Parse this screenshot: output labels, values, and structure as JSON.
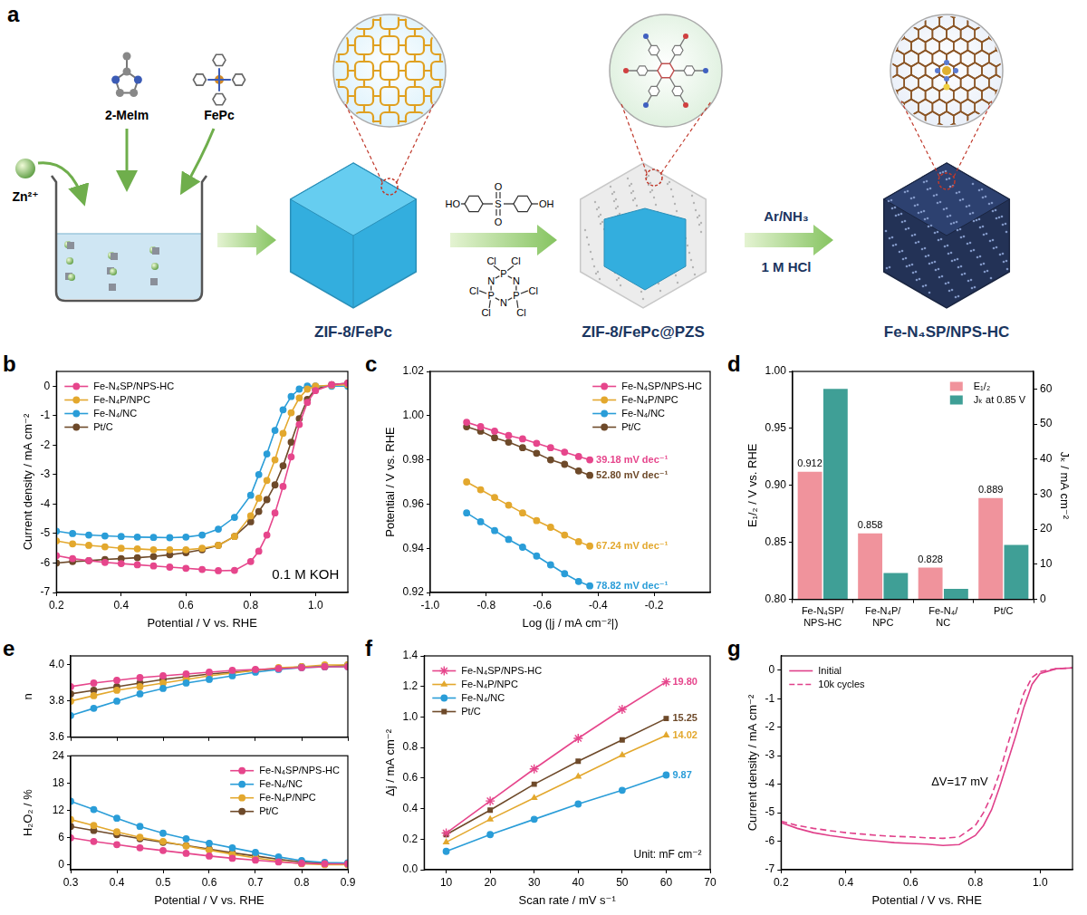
{
  "diagram": {
    "panel": "a",
    "precursors": [
      "Zn²⁺",
      "2-MeIm",
      "FePc"
    ],
    "stages": [
      "ZIF-8/FePc",
      "ZIF-8/FePc@PZS",
      "Fe-N₄SP/NPS-HC"
    ],
    "conditions": [
      "Ar/NH₃",
      "1 M HCl"
    ],
    "reagents": {
      "bisphenol_s": {
        "end_groups": [
          "HO",
          "OH"
        ],
        "center": "S",
        "oxo": "O"
      },
      "hccp": {
        "ring": [
          "P",
          "N",
          "P",
          "N",
          "P",
          "N"
        ],
        "substituent": "Cl"
      }
    }
  },
  "chart_data": [
    {
      "panel": "b",
      "type": "line",
      "xlabel": "Potential / V vs. RHE",
      "ylabel": "Current density / mA cm⁻²",
      "x": [
        0.2,
        0.25,
        0.3,
        0.35,
        0.4,
        0.45,
        0.5,
        0.55,
        0.6,
        0.65,
        0.7,
        0.75,
        0.8,
        0.825,
        0.85,
        0.875,
        0.9,
        0.925,
        0.95,
        0.975,
        1.0,
        1.05,
        1.1
      ],
      "series": [
        {
          "name": "Fe-N₄SP/NPS-HC",
          "color": "#e6468c",
          "marker": "circle",
          "line_style": "solid",
          "values": [
            -5.75,
            -5.85,
            -5.92,
            -5.98,
            -6.02,
            -6.06,
            -6.1,
            -6.14,
            -6.18,
            -6.22,
            -6.26,
            -6.25,
            -5.95,
            -5.6,
            -5.05,
            -4.3,
            -3.4,
            -2.4,
            -1.3,
            -0.55,
            -0.15,
            0.05,
            0.1
          ]
        },
        {
          "name": "Fe-N₄P/NPC",
          "color": "#e3a82e",
          "marker": "circle",
          "line_style": "solid",
          "values": [
            -5.25,
            -5.35,
            -5.4,
            -5.45,
            -5.5,
            -5.52,
            -5.55,
            -5.55,
            -5.55,
            -5.5,
            -5.4,
            -5.1,
            -4.4,
            -3.8,
            -3.2,
            -2.5,
            -1.6,
            -0.9,
            -0.4,
            -0.1,
            0,
            0.03,
            0.05
          ]
        },
        {
          "name": "Fe-N₄/NC",
          "color": "#2a9dd8",
          "marker": "circle",
          "line_style": "solid",
          "values": [
            -4.92,
            -5.0,
            -5.05,
            -5.08,
            -5.1,
            -5.12,
            -5.13,
            -5.14,
            -5.12,
            -5.05,
            -4.85,
            -4.45,
            -3.7,
            -3.0,
            -2.3,
            -1.5,
            -0.8,
            -0.35,
            -0.1,
            0,
            0,
            0,
            0
          ]
        },
        {
          "name": "Pt/C",
          "color": "#6e4a2a",
          "marker": "circle",
          "line_style": "solid",
          "values": [
            -6.0,
            -5.95,
            -5.92,
            -5.88,
            -5.85,
            -5.82,
            -5.78,
            -5.72,
            -5.65,
            -5.55,
            -5.4,
            -5.1,
            -4.6,
            -4.25,
            -3.85,
            -3.35,
            -2.7,
            -1.9,
            -1.1,
            -0.45,
            -0.1,
            0.05,
            0.1
          ]
        }
      ],
      "xlim": [
        0.2,
        1.1
      ],
      "xticks": [
        0.2,
        0.4,
        0.6,
        0.8,
        {
          "value": 1,
          "label": "1.0"
        }
      ],
      "ylim": [
        -7,
        0.5
      ],
      "yticks": [
        -7,
        -6,
        -5,
        -4,
        -3,
        -2,
        -1,
        0
      ],
      "grid": false,
      "legend": "upper left",
      "annotations": [
        "0.1 M KOH"
      ]
    },
    {
      "panel": "c",
      "type": "line",
      "xlabel": "Log (|j / mA cm⁻²|)",
      "ylabel": "Potential / V vs. RHE",
      "x": [
        -0.87,
        -0.82,
        -0.77,
        -0.72,
        -0.67,
        -0.62,
        -0.57,
        -0.52,
        -0.47,
        -0.43
      ],
      "series": [
        {
          "name": "Fe-N₄SP/NPS-HC",
          "color": "#e6468c",
          "marker": "circle",
          "line_style": "solid",
          "annotation": "39.18 mV dec⁻¹",
          "values": [
            0.997,
            0.995,
            0.993,
            0.991,
            0.9895,
            0.9875,
            0.9855,
            0.9835,
            0.9815,
            0.98
          ]
        },
        {
          "name": "Fe-N₄P/NPC",
          "color": "#e3a82e",
          "marker": "circle",
          "line_style": "solid",
          "annotation": "67.24 mV dec⁻¹",
          "values": [
            0.97,
            0.9665,
            0.963,
            0.9595,
            0.956,
            0.9525,
            0.9495,
            0.946,
            0.943,
            0.941
          ]
        },
        {
          "name": "Fe-N₄/NC",
          "color": "#2a9dd8",
          "marker": "circle",
          "line_style": "solid",
          "annotation": "78.82 mV dec⁻¹",
          "values": [
            0.956,
            0.952,
            0.948,
            0.944,
            0.9405,
            0.9365,
            0.9325,
            0.9285,
            0.925,
            0.923
          ]
        },
        {
          "name": "Pt/C",
          "color": "#6e4a2a",
          "marker": "circle",
          "line_style": "solid",
          "annotation": "52.80 mV dec⁻¹",
          "values": [
            0.995,
            0.993,
            0.99,
            0.988,
            0.9855,
            0.983,
            0.98,
            0.978,
            0.975,
            0.973
          ]
        }
      ],
      "xlim": [
        -1.0,
        0.0
      ],
      "xticks": [
        {
          "value": -1,
          "label": "-1.0"
        },
        -0.8,
        -0.6,
        -0.4,
        -0.2
      ],
      "ylim": [
        0.92,
        1.02
      ],
      "yticks": [
        0.92,
        0.94,
        0.96,
        0.98,
        {
          "value": 1,
          "label": "1.00"
        },
        1.02
      ],
      "grid": false,
      "legend": "upper right"
    },
    {
      "panel": "d",
      "type": "bar",
      "ylabel": "E₁/₂ / V vs. RHE",
      "y2label": "Jₖ / mA cm⁻²",
      "categories": [
        "Fe-N₄SP/NPS-HC",
        "Fe-N₄P/NPC",
        "Fe-N₄/NC",
        "Pt/C"
      ],
      "series": [
        {
          "name": "E₁/₂",
          "color": "#f0939c",
          "values": [
            0.912,
            0.858,
            0.828,
            0.889
          ],
          "data_labels": true
        },
        {
          "name": "Jₖ at 0.85 V",
          "color": "#3f9f96",
          "axis": "y2",
          "values": [
            60,
            7.5,
            3,
            15.5
          ]
        }
      ],
      "ylim": [
        0.8,
        1.0
      ],
      "yticks": [
        {
          "value": 0.8,
          "label": "0.80"
        },
        0.85,
        {
          "value": 0.9,
          "label": "0.90"
        },
        0.95,
        {
          "value": 1,
          "label": "1.00"
        }
      ],
      "y2lim": [
        0,
        65
      ],
      "y2ticks": [
        0,
        10,
        20,
        30,
        40,
        50,
        60
      ],
      "grid": false,
      "legend": "upper right"
    },
    {
      "panel": "e",
      "type": "line",
      "ylabel": "n",
      "x": [
        0.3,
        0.35,
        0.4,
        0.45,
        0.5,
        0.55,
        0.6,
        0.65,
        0.7,
        0.75,
        0.8,
        0.85,
        0.9
      ],
      "series": [
        {
          "name": "Fe-N₄SP/NPS-HC",
          "color": "#e6468c",
          "marker": "circle",
          "line_style": "solid",
          "values": [
            3.88,
            3.9,
            3.915,
            3.93,
            3.94,
            3.95,
            3.96,
            3.97,
            3.975,
            3.98,
            3.985,
            3.99,
            3.99
          ]
        },
        {
          "name": "Fe-N₄/NC",
          "color": "#2a9dd8",
          "marker": "circle",
          "line_style": "solid",
          "values": [
            3.72,
            3.76,
            3.8,
            3.84,
            3.87,
            3.9,
            3.92,
            3.94,
            3.96,
            3.975,
            3.985,
            3.99,
            3.99
          ]
        },
        {
          "name": "Fe-N₄P/NPC",
          "color": "#e3a82e",
          "marker": "circle",
          "line_style": "solid",
          "values": [
            3.8,
            3.83,
            3.86,
            3.88,
            3.9,
            3.92,
            3.94,
            3.955,
            3.97,
            3.985,
            3.99,
            4.0,
            4.0
          ]
        },
        {
          "name": "Pt/C",
          "color": "#6e4a2a",
          "marker": "circle",
          "line_style": "solid",
          "values": [
            3.84,
            3.86,
            3.88,
            3.9,
            3.92,
            3.935,
            3.95,
            3.96,
            3.97,
            3.98,
            3.99,
            3.99,
            4.0
          ]
        }
      ],
      "xlim": [
        0.3,
        0.9
      ],
      "xticks": [
        0.3,
        0.4,
        0.5,
        0.6,
        0.7,
        0.8,
        0.9
      ],
      "ylim": [
        3.6,
        4.05
      ],
      "yticks": [
        3.6,
        3.8,
        {
          "value": 4,
          "label": "4.0"
        }
      ],
      "grid": false,
      "tick_labels": "y"
    },
    {
      "type": "line",
      "xlabel": "Potential / V vs. RHE",
      "ylabel": "H₂O₂ / %",
      "x": [
        0.3,
        0.35,
        0.4,
        0.45,
        0.5,
        0.55,
        0.6,
        0.65,
        0.7,
        0.75,
        0.8,
        0.85,
        0.9
      ],
      "series": [
        {
          "name": "Fe-N₄SP/NPS-HC",
          "color": "#e6468c",
          "marker": "circle",
          "line_style": "solid",
          "values": [
            6,
            5.2,
            4.5,
            3.8,
            3.2,
            2.6,
            2.0,
            1.5,
            1.1,
            0.7,
            0.4,
            0.3,
            0.3
          ]
        },
        {
          "name": "Fe-N₄/NC",
          "color": "#2a9dd8",
          "marker": "circle",
          "line_style": "solid",
          "values": [
            14,
            12.2,
            10.3,
            8.5,
            7.0,
            5.8,
            4.8,
            3.8,
            2.8,
            1.8,
            1.0,
            0.6,
            0.5
          ]
        },
        {
          "name": "Fe-N₄P/NPC",
          "color": "#e3a82e",
          "marker": "circle",
          "line_style": "solid",
          "values": [
            10,
            8.7,
            7.3,
            6.1,
            5.2,
            4.2,
            3.3,
            2.4,
            1.6,
            0.9,
            0.3,
            0.1,
            0.1
          ]
        },
        {
          "name": "Pt/C",
          "color": "#6e4a2a",
          "marker": "circle",
          "line_style": "solid",
          "values": [
            8.5,
            7.6,
            6.7,
            5.8,
            5.0,
            4.3,
            3.5,
            2.7,
            2.0,
            1.3,
            0.7,
            0.4,
            0.4
          ]
        }
      ],
      "xlim": [
        0.3,
        0.9
      ],
      "xticks": [
        0.3,
        0.4,
        0.5,
        0.6,
        0.7,
        0.8,
        0.9
      ],
      "ylim": [
        -1,
        24
      ],
      "yticks": [
        0,
        6,
        12,
        18,
        24
      ],
      "grid": false,
      "legend": "upper right"
    },
    {
      "panel": "f",
      "type": "line",
      "xlabel": "Scan rate / mV s⁻¹",
      "ylabel": "Δj / mA cm⁻²",
      "x": [
        10,
        20,
        30,
        40,
        50,
        60
      ],
      "series": [
        {
          "name": "Fe-N₄SP/NPS-HC",
          "color": "#e6468c",
          "marker": "star",
          "line_style": "solid",
          "annotation": "19.80",
          "values": [
            0.24,
            0.45,
            0.66,
            0.86,
            1.05,
            1.23
          ]
        },
        {
          "name": "Fe-N₄P/NPC",
          "color": "#e3a82e",
          "marker": "triangle",
          "line_style": "solid",
          "annotation": "14.02",
          "values": [
            0.18,
            0.33,
            0.47,
            0.61,
            0.75,
            0.88
          ]
        },
        {
          "name": "Fe-N₄/NC",
          "color": "#2a9dd8",
          "marker": "circle",
          "line_style": "solid",
          "annotation": "9.87",
          "values": [
            0.12,
            0.23,
            0.33,
            0.43,
            0.52,
            0.62
          ]
        },
        {
          "name": "Pt/C",
          "color": "#6e4a2a",
          "marker": "square",
          "line_style": "solid",
          "annotation": "15.25",
          "values": [
            0.23,
            0.39,
            0.56,
            0.71,
            0.85,
            0.99
          ]
        }
      ],
      "xlim": [
        5,
        70
      ],
      "xticks": [
        10,
        20,
        30,
        40,
        50,
        60,
        70
      ],
      "ylim": [
        0,
        1.4
      ],
      "yticks": [
        {
          "value": 0,
          "label": "0.0"
        },
        0.2,
        0.4,
        0.6,
        0.8,
        {
          "value": 1,
          "label": "1.0"
        },
        1.2,
        1.4
      ],
      "grid": false,
      "legend": "upper left",
      "annotations": [
        "Unit: mF cm⁻²"
      ]
    },
    {
      "panel": "g",
      "type": "line",
      "xlabel": "Potential / V vs. RHE",
      "ylabel": "Current density / mA cm⁻²",
      "x": [
        0.2,
        0.25,
        0.3,
        0.35,
        0.4,
        0.45,
        0.5,
        0.55,
        0.6,
        0.65,
        0.7,
        0.75,
        0.8,
        0.825,
        0.85,
        0.875,
        0.9,
        0.925,
        0.95,
        0.975,
        1.0,
        1.05,
        1.1
      ],
      "series": [
        {
          "name": "Initial",
          "color": "#e0408a",
          "marker": "none",
          "line_style": "solid",
          "values": [
            -5.35,
            -5.55,
            -5.7,
            -5.8,
            -5.88,
            -5.95,
            -6.0,
            -6.05,
            -6.08,
            -6.1,
            -6.15,
            -6.12,
            -5.8,
            -5.45,
            -4.9,
            -4.1,
            -3.2,
            -2.3,
            -1.3,
            -0.5,
            -0.12,
            0.05,
            0.08
          ]
        },
        {
          "name": "10k cycles",
          "color": "#e0408a",
          "marker": "none",
          "line_style": "dashed",
          "values": [
            -5.3,
            -5.45,
            -5.55,
            -5.63,
            -5.7,
            -5.75,
            -5.8,
            -5.83,
            -5.85,
            -5.88,
            -5.9,
            -5.85,
            -5.45,
            -5.0,
            -4.4,
            -3.6,
            -2.6,
            -1.7,
            -0.8,
            -0.25,
            -0.05,
            0.05,
            0.08
          ]
        }
      ],
      "xlim": [
        0.2,
        1.1
      ],
      "xticks": [
        0.2,
        0.4,
        0.6,
        0.8,
        {
          "value": 1,
          "label": "1.0"
        }
      ],
      "ylim": [
        -7,
        0.5
      ],
      "yticks": [
        -7,
        -6,
        -5,
        -4,
        -3,
        -2,
        -1,
        0
      ],
      "grid": false,
      "legend": "upper left",
      "annotations": [
        "ΔV=17 mV"
      ]
    }
  ]
}
